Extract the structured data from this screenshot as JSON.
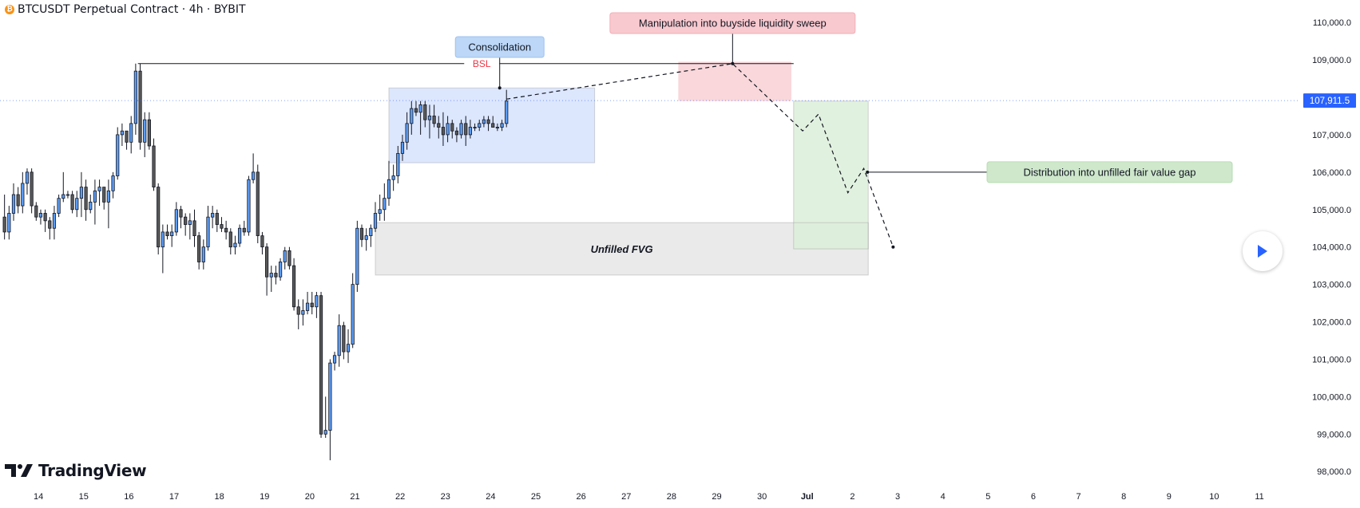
{
  "header": {
    "title": "BTCUSDT Perpetual Contract · 4h · BYBIT",
    "coin_icon": "bitcoin-icon"
  },
  "logo": {
    "text": "TradingView"
  },
  "play_button": {
    "icon": "play-icon"
  },
  "chart_data": {
    "type": "candlestick",
    "title": "BTCUSDT Perpetual Contract · 4h · BYBIT",
    "x_ticks": [
      "14",
      "15",
      "16",
      "17",
      "18",
      "19",
      "20",
      "21",
      "22",
      "23",
      "24",
      "25",
      "26",
      "27",
      "28",
      "29",
      "30",
      "Jul",
      "2",
      "3",
      "4",
      "5",
      "6",
      "7",
      "8",
      "9",
      "10",
      "11"
    ],
    "y_ticks": [
      98000,
      99000,
      100000,
      101000,
      102000,
      103000,
      104000,
      105000,
      106000,
      107000,
      108000,
      109000,
      110000
    ],
    "y_tick_labels": [
      "98,000.0",
      "99,000.0",
      "100,000.0",
      "101,000.0",
      "102,000.0",
      "103,000.0",
      "104,000.0",
      "105,000.0",
      "106,000.0",
      "107,000.0",
      "108,000.0",
      "109,000.0",
      "110,000.0"
    ],
    "ylim": [
      97600,
      110600
    ],
    "xlim_days": [
      13.15,
      41.9
    ],
    "last_price": 107911.5,
    "last_price_label": "107,911.5",
    "colors": {
      "up": "#5b9cf6",
      "down": "#5a5a5a",
      "price_line": "#2962ff",
      "bsl": "#f23645"
    },
    "candles": [
      [
        13.25,
        104800,
        105400,
        104200,
        104400
      ],
      [
        13.35,
        104400,
        105100,
        104200,
        104900
      ],
      [
        13.45,
        104900,
        105700,
        104700,
        105400
      ],
      [
        13.55,
        105400,
        105600,
        104900,
        105100
      ],
      [
        13.65,
        105100,
        106000,
        104900,
        105700
      ],
      [
        13.75,
        105700,
        106100,
        105400,
        106000
      ],
      [
        13.85,
        106000,
        106100,
        104900,
        105100
      ],
      [
        13.95,
        105100,
        105200,
        104700,
        104800
      ],
      [
        14.05,
        104800,
        105000,
        104600,
        104900
      ],
      [
        14.15,
        104900,
        105000,
        104400,
        104700
      ],
      [
        14.25,
        104700,
        104800,
        104200,
        104500
      ],
      [
        14.35,
        104500,
        105100,
        104200,
        104900
      ],
      [
        14.45,
        104900,
        105400,
        104800,
        105300
      ],
      [
        14.55,
        105300,
        106000,
        105200,
        105400
      ],
      [
        14.65,
        105400,
        105500,
        105300,
        105400
      ],
      [
        14.75,
        105400,
        105500,
        104900,
        105000
      ],
      [
        14.85,
        105000,
        105500,
        104800,
        105300
      ],
      [
        14.95,
        105300,
        106000,
        104800,
        105600
      ],
      [
        15.05,
        105600,
        105800,
        104700,
        105000
      ],
      [
        15.15,
        105000,
        105400,
        104900,
        105200
      ],
      [
        15.25,
        105200,
        105800,
        104600,
        105500
      ],
      [
        15.35,
        105500,
        105800,
        105100,
        105600
      ],
      [
        15.45,
        105600,
        105600,
        105000,
        105200
      ],
      [
        15.55,
        105200,
        105800,
        104500,
        105500
      ],
      [
        15.65,
        105500,
        106000,
        105300,
        105900
      ],
      [
        15.75,
        105900,
        107200,
        105800,
        107000
      ],
      [
        15.85,
        107000,
        107300,
        106700,
        107100
      ],
      [
        15.95,
        107100,
        107100,
        106600,
        106800
      ],
      [
        16.05,
        106800,
        107500,
        106500,
        107300
      ],
      [
        16.15,
        107300,
        108900,
        107000,
        108700
      ],
      [
        16.25,
        108700,
        108900,
        106600,
        106800
      ],
      [
        16.35,
        106800,
        107600,
        106400,
        107400
      ],
      [
        16.45,
        107400,
        107600,
        106600,
        106700
      ],
      [
        16.55,
        106700,
        106900,
        105500,
        105600
      ],
      [
        16.65,
        105600,
        105700,
        103800,
        104000
      ],
      [
        16.75,
        104000,
        104600,
        103300,
        104400
      ],
      [
        16.85,
        104400,
        104600,
        104200,
        104300
      ],
      [
        16.95,
        104300,
        104600,
        104000,
        104400
      ],
      [
        17.05,
        104400,
        105200,
        104300,
        105000
      ],
      [
        17.15,
        105000,
        105100,
        104500,
        104800
      ],
      [
        17.25,
        104800,
        104900,
        104300,
        104600
      ],
      [
        17.35,
        104600,
        104900,
        104200,
        104700
      ],
      [
        17.45,
        104700,
        105000,
        104000,
        104300
      ],
      [
        17.55,
        104300,
        104400,
        103400,
        103600
      ],
      [
        17.65,
        103600,
        104200,
        103400,
        104000
      ],
      [
        17.75,
        104000,
        105100,
        103900,
        104800
      ],
      [
        17.85,
        104800,
        105100,
        104500,
        104900
      ],
      [
        17.95,
        104900,
        105000,
        104400,
        104600
      ],
      [
        18.05,
        104600,
        104800,
        104400,
        104500
      ],
      [
        18.15,
        104500,
        104700,
        104200,
        104400
      ],
      [
        18.25,
        104400,
        104500,
        103800,
        104000
      ],
      [
        18.35,
        104000,
        104300,
        103800,
        104100
      ],
      [
        18.45,
        104100,
        104600,
        104000,
        104500
      ],
      [
        18.55,
        104500,
        104700,
        104300,
        104400
      ],
      [
        18.65,
        104400,
        105900,
        104300,
        105800
      ],
      [
        18.75,
        105800,
        106500,
        105700,
        106000
      ],
      [
        18.85,
        106000,
        106200,
        104100,
        104300
      ],
      [
        18.95,
        104300,
        104400,
        103800,
        104000
      ],
      [
        19.05,
        104000,
        104100,
        102700,
        103200
      ],
      [
        19.15,
        103200,
        103500,
        102800,
        103300
      ],
      [
        19.25,
        103300,
        103500,
        103000,
        103200
      ],
      [
        19.35,
        103200,
        103700,
        103100,
        103600
      ],
      [
        19.45,
        103600,
        104000,
        103400,
        103900
      ],
      [
        19.55,
        103900,
        104000,
        103400,
        103500
      ],
      [
        19.65,
        103500,
        103700,
        102300,
        102400
      ],
      [
        19.75,
        102400,
        102600,
        101800,
        102200
      ],
      [
        19.85,
        102200,
        102600,
        101900,
        102300
      ],
      [
        19.95,
        102300,
        102800,
        102200,
        102500
      ],
      [
        20.05,
        102500,
        102800,
        102200,
        102400
      ],
      [
        20.15,
        102400,
        102800,
        102100,
        102700
      ],
      [
        20.25,
        102700,
        102800,
        98900,
        99000
      ],
      [
        20.35,
        99000,
        100000,
        98900,
        99100
      ],
      [
        20.45,
        99100,
        101000,
        98300,
        100900
      ],
      [
        20.55,
        100900,
        101200,
        100700,
        101100
      ],
      [
        20.65,
        101100,
        102200,
        100800,
        101900
      ],
      [
        20.75,
        101900,
        102000,
        101000,
        101200
      ],
      [
        20.85,
        101200,
        101800,
        100900,
        101400
      ],
      [
        20.95,
        101400,
        103300,
        101300,
        103000
      ],
      [
        21.05,
        103000,
        104700,
        102800,
        104500
      ],
      [
        21.15,
        104500,
        104600,
        104000,
        104200
      ],
      [
        21.25,
        104200,
        104500,
        103900,
        104300
      ],
      [
        21.35,
        104300,
        104600,
        104000,
        104500
      ],
      [
        21.45,
        104500,
        105200,
        104400,
        104900
      ],
      [
        21.55,
        104900,
        105400,
        104700,
        105000
      ],
      [
        21.65,
        105000,
        105700,
        104700,
        105300
      ],
      [
        21.75,
        105300,
        106300,
        105100,
        105800
      ],
      [
        21.85,
        105800,
        106200,
        105500,
        105900
      ],
      [
        21.95,
        105900,
        106700,
        105700,
        106500
      ],
      [
        22.05,
        106500,
        107000,
        106300,
        106800
      ],
      [
        22.15,
        106800,
        107600,
        106600,
        107300
      ],
      [
        22.25,
        107300,
        107900,
        107000,
        107700
      ],
      [
        22.35,
        107700,
        107900,
        107500,
        107600
      ],
      [
        22.45,
        107600,
        107900,
        107000,
        107800
      ],
      [
        22.55,
        107800,
        107900,
        107200,
        107400
      ],
      [
        22.65,
        107400,
        107800,
        106900,
        107500
      ],
      [
        22.75,
        107500,
        107800,
        107200,
        107300
      ],
      [
        22.85,
        107300,
        107500,
        106900,
        107200
      ],
      [
        22.95,
        107200,
        107600,
        106700,
        107000
      ],
      [
        23.05,
        107000,
        107500,
        106800,
        107300
      ],
      [
        23.15,
        107300,
        107400,
        106900,
        107100
      ],
      [
        23.25,
        107100,
        107200,
        106800,
        107000
      ],
      [
        23.35,
        107000,
        107400,
        106900,
        107300
      ],
      [
        23.45,
        107300,
        107500,
        106700,
        107000
      ],
      [
        23.55,
        107000,
        107400,
        106900,
        107200
      ],
      [
        23.65,
        107200,
        107300,
        107100,
        107200
      ],
      [
        23.75,
        107200,
        107400,
        107100,
        107300
      ],
      [
        23.85,
        107300,
        107500,
        107200,
        107400
      ],
      [
        23.95,
        107400,
        107500,
        107100,
        107300
      ],
      [
        24.05,
        107300,
        107500,
        107200,
        107200
      ],
      [
        24.15,
        107200,
        107300,
        107100,
        107200
      ],
      [
        24.25,
        107200,
        107400,
        107100,
        107300
      ],
      [
        24.35,
        107300,
        108200,
        107200,
        107900
      ]
    ],
    "annotations": {
      "bsl": {
        "label": "BSL",
        "price": 108900,
        "x_start": 16.2,
        "x_end": 30.7
      },
      "consolidation": {
        "label": "Consolidation",
        "x_start": 21.75,
        "x_end": 26.3,
        "y_low": 106250,
        "y_high": 108250,
        "color": "#d6e2fd",
        "pin_x": 24.2
      },
      "sweep_zone": {
        "label": "Manipulation into buyside liquidity sweep",
        "x_start": 28.15,
        "x_end": 30.65,
        "y_low": 107900,
        "y_high": 108950,
        "color": "#f8d0d4",
        "pin_x": 29.35
      },
      "fvg": {
        "label": "Unfilled FVG",
        "x_start": 21.45,
        "x_end": 32.35,
        "y_low": 103250,
        "y_high": 104650,
        "color": "#e6e6e6"
      },
      "target_zone": {
        "label": "Distribution into unfilled fair value gap",
        "x_start": 30.7,
        "x_end": 32.35,
        "y_low": 103950,
        "y_high": 107900,
        "color": "#dcefd9",
        "pin_x": 31.85
      },
      "projection_path": [
        [
          24.35,
          107950
        ],
        [
          29.35,
          108900
        ],
        [
          30.9,
          107100
        ],
        [
          31.25,
          107550
        ],
        [
          31.9,
          105450
        ],
        [
          32.25,
          106100
        ],
        [
          32.9,
          104000
        ]
      ]
    }
  }
}
